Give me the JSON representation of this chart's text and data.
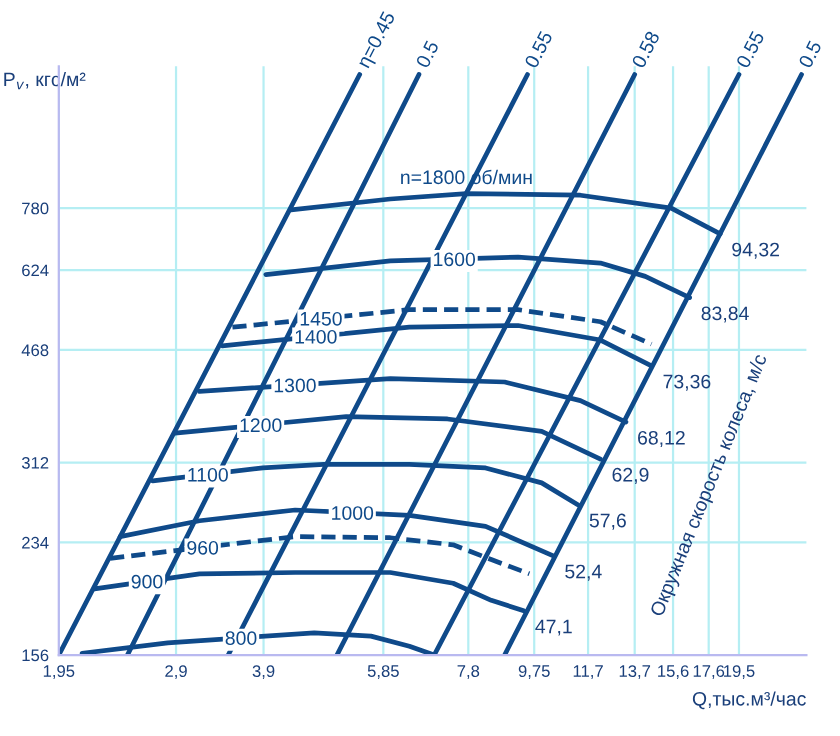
{
  "chart_data": {
    "type": "line",
    "log": "xy",
    "xlim": [
      1.95,
      24.5
    ],
    "ylim": [
      156,
      1300
    ],
    "xticks": [
      {
        "value": 1.95,
        "label": "1,95"
      },
      {
        "value": 2.9,
        "label": "2,9"
      },
      {
        "value": 3.9,
        "label": "3,9"
      },
      {
        "value": 5.85,
        "label": "5,85"
      },
      {
        "value": 7.8,
        "label": "7,8"
      },
      {
        "value": 9.75,
        "label": "9,75"
      },
      {
        "value": 11.7,
        "label": "11,7"
      },
      {
        "value": 13.7,
        "label": "13,7"
      },
      {
        "value": 15.6,
        "label": "15,6"
      },
      {
        "value": 17.6,
        "label": "17,6"
      },
      {
        "value": 19.5,
        "label": "19,5"
      }
    ],
    "yticks": [
      156,
      234,
      312,
      468,
      624,
      780
    ],
    "xlabel": "Q,тыс.м³/час",
    "ylabel": "P$_{v}$, кгс/м²",
    "grid": true,
    "series": [
      {
        "name": "n=1800 об/мин",
        "color": "#0f4a8a",
        "x": [
          4.28,
          5.99,
          7.75,
          11.4,
          15.5,
          18.3
        ],
        "values": [
          775,
          806,
          822,
          817,
          780,
          711
        ]
      },
      {
        "name": "1600",
        "color": "#0f4a8a",
        "x": [
          3.93,
          5.99,
          9.23,
          12.2,
          14.2,
          16.5
        ],
        "values": [
          614,
          645,
          654,
          640,
          610,
          565
        ]
      },
      {
        "name": "1450",
        "color": "#0f4a8a",
        "line_style": "dashed",
        "x": [
          3.51,
          6.39,
          9.23,
          12.2,
          14.5
        ],
        "values": [
          508,
          541,
          541,
          518,
          478
        ]
      },
      {
        "name": "1400",
        "color": "#0f4a8a",
        "x": [
          3.39,
          6.39,
          9.23,
          12.2,
          14.5
        ],
        "values": [
          475,
          508,
          511,
          485,
          442
        ]
      },
      {
        "name": "1300",
        "color": "#0f4a8a",
        "x": [
          3.14,
          5.99,
          8.82,
          11.4,
          13.3
        ],
        "values": [
          403,
          422,
          417,
          390,
          361
        ]
      },
      {
        "name": "1200",
        "color": "#0f4a8a",
        "x": [
          2.89,
          5.16,
          7.27,
          10.0,
          12.2
        ],
        "values": [
          347,
          368,
          365,
          349,
          316
        ]
      },
      {
        "name": "1100",
        "color": "#0f4a8a",
        "x": [
          2.68,
          3.89,
          4.78,
          6.39,
          8.27,
          10.0,
          11.3
        ],
        "values": [
          292,
          306,
          310,
          310,
          306,
          290,
          268
        ]
      },
      {
        "name": "1000",
        "color": "#0f4a8a",
        "x": [
          2.4,
          3.14,
          4.34,
          6.39,
          8.27,
          10.4
        ],
        "values": [
          239,
          253,
          263,
          258,
          248,
          223
        ]
      },
      {
        "name": "960",
        "color": "#0f4a8a",
        "line_style": "dashed",
        "x": [
          2.32,
          4.34,
          5.99,
          7.41,
          8.43,
          9.59
        ],
        "values": [
          221,
          239,
          238,
          232,
          220,
          209
        ]
      },
      {
        "name": "900",
        "color": "#0f4a8a",
        "x": [
          2.2,
          3.14,
          4.34,
          5.99,
          7.41,
          8.43,
          9.41
        ],
        "values": [
          198,
          209,
          210,
          210,
          202,
          190,
          183
        ]
      },
      {
        "name": "800",
        "color": "#0f4a8a",
        "x": [
          2.11,
          2.82,
          4.63,
          5.61,
          6.39,
          6.95
        ],
        "values": [
          157,
          163,
          169,
          167,
          161,
          156
        ]
      },
      {
        "name": "η=0.45",
        "color": "#0f4a8a",
        "x": [
          1.95,
          5.4
        ],
        "values": [
          156,
          1262
        ]
      },
      {
        "name": "0.5",
        "color": "#0f4a8a",
        "x": [
          2.46,
          6.6
        ],
        "values": [
          156,
          1262
        ]
      },
      {
        "name": "0.55",
        "color": "#0f4a8a",
        "x": [
          3.46,
          9.53
        ],
        "values": [
          156,
          1262
        ]
      },
      {
        "name": "0.58",
        "color": "#0f4a8a",
        "x": [
          5.0,
          13.7
        ],
        "values": [
          156,
          1262
        ]
      },
      {
        "name": "0.55",
        "color": "#0f4a8a",
        "x": [
          6.95,
          19.5
        ],
        "values": [
          156,
          1262
        ]
      },
      {
        "name": "0.5",
        "color": "#0f4a8a",
        "x": [
          8.82,
          24.1
        ],
        "values": [
          156,
          1262
        ]
      }
    ],
    "annotations": [
      {
        "text": "94,32",
        "x": 18.3,
        "y": 711
      },
      {
        "text": "83,84",
        "x": 16.5,
        "y": 565
      },
      {
        "text": "73,36",
        "x": 14.5,
        "y": 442
      },
      {
        "text": "68,12",
        "x": 13.3,
        "y": 361
      },
      {
        "text": "62,9",
        "x": 12.2,
        "y": 316
      },
      {
        "text": "57,6",
        "x": 11.3,
        "y": 268
      },
      {
        "text": "52,4",
        "x": 10.4,
        "y": 223
      },
      {
        "text": "47,1",
        "x": 9.41,
        "y": 183
      },
      "Окружная скорость колеса, м/с"
    ]
  }
}
